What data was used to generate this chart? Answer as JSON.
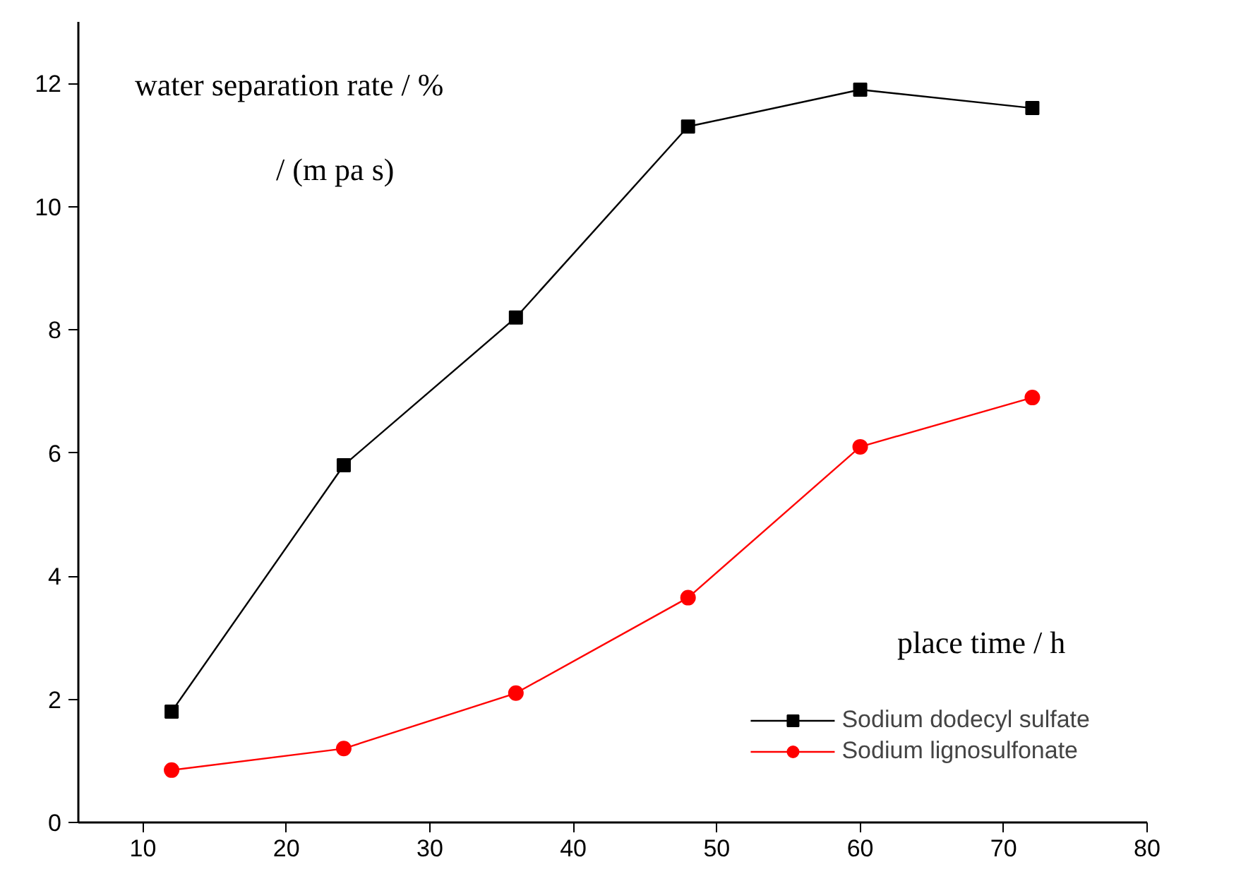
{
  "chart_data": {
    "type": "line",
    "xlabel": "place time / h",
    "ylabel": "water separation rate / %",
    "annotations": [
      "/ (m pa s)"
    ],
    "x": [
      12,
      24,
      36,
      48,
      60,
      72
    ],
    "series": [
      {
        "name": "Sodium dodecyl sulfate",
        "color": "#000000",
        "marker": "square",
        "values": [
          1.8,
          5.8,
          8.2,
          11.3,
          11.9,
          11.6
        ]
      },
      {
        "name": "Sodium lignosulfonate",
        "color": "#ff0000",
        "marker": "circle",
        "values": [
          0.85,
          1.2,
          2.1,
          3.65,
          6.1,
          6.9
        ]
      }
    ],
    "xlim": [
      5.5,
      80
    ],
    "xticks": [
      10,
      20,
      30,
      40,
      50,
      60,
      70,
      80
    ],
    "ylim": [
      0,
      13
    ],
    "yticks": [
      0,
      2,
      4,
      6,
      8,
      10,
      12
    ],
    "grid": false,
    "legend": "bottom right",
    "line_style": "solid"
  }
}
